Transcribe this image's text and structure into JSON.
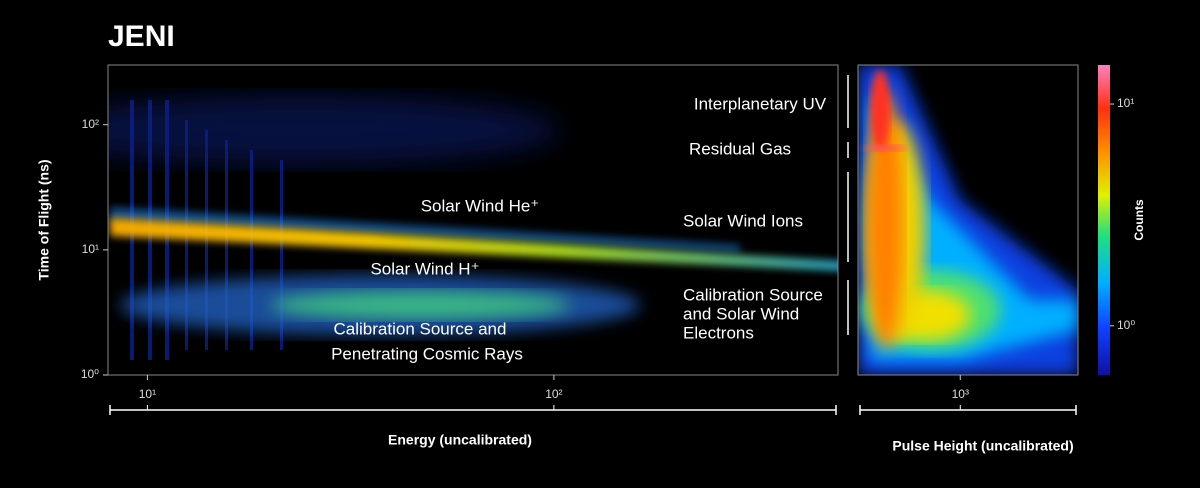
{
  "chart_data": {
    "type": "heatmap",
    "title": "JENI",
    "ylabel": "Time of Flight (ns)",
    "yscale": "log",
    "ylim": [
      1,
      300
    ],
    "yticks": [
      {
        "value": 1,
        "label": "10⁰"
      },
      {
        "value": 10,
        "label": "10¹"
      },
      {
        "value": 100,
        "label": "10²"
      }
    ],
    "panels": [
      {
        "xlabel": "Energy (uncalibrated)",
        "xscale": "log",
        "xlim": [
          8,
          500
        ],
        "xticks": [
          {
            "value": 10,
            "label": "10¹"
          },
          {
            "value": 100,
            "label": "10²"
          }
        ]
      },
      {
        "xlabel": "Pulse Height (uncalibrated)",
        "xscale": "log",
        "xlim": [
          570,
          1910
        ],
        "xticks": [
          {
            "value": 1000,
            "label": "10³"
          }
        ]
      }
    ],
    "colorbar": {
      "label": "Counts",
      "scale": "log",
      "clim": [
        0.6,
        15
      ],
      "ticks": [
        {
          "value": 1,
          "label": "10⁰"
        },
        {
          "value": 10,
          "label": "10¹"
        }
      ]
    },
    "annotations": [
      [
        "Solar Wind He⁺"
      ],
      [
        "Solar Wind H⁺"
      ],
      [
        "Calibration Source and",
        "Penetrating Cosmic Rays"
      ],
      [
        "Interplanetary UV"
      ],
      [
        "Residual Gas"
      ],
      [
        "Solar Wind Ions"
      ],
      [
        "Calibration Source",
        "and Solar Wind",
        "Electrons"
      ]
    ]
  }
}
